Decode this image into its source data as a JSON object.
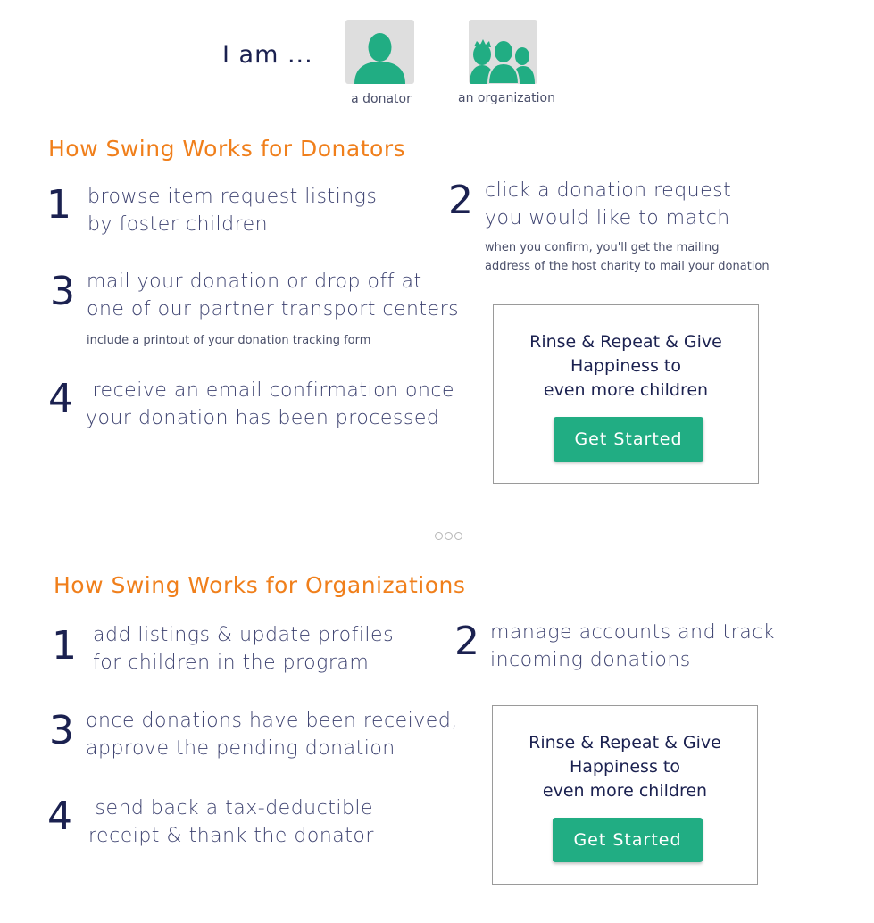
{
  "header": {
    "iam": "I am ...",
    "roles": [
      {
        "label": "a donator",
        "icon": "person-icon",
        "color": "#21ad83"
      },
      {
        "label": "an organization",
        "icon": "group-icon",
        "color": "#21ad83"
      }
    ]
  },
  "donators": {
    "title": "How Swing Works for Donators",
    "steps": [
      {
        "num": "1",
        "lines": [
          "browse item request listings",
          "by foster children"
        ]
      },
      {
        "num": "2",
        "lines": [
          "click a donation request",
          "you would like to match"
        ],
        "note": [
          "when you confirm, you'll get the mailing",
          "address of the host charity to mail your donation"
        ]
      },
      {
        "num": "3",
        "lines": [
          "mail your donation or drop off at",
          "one of our partner transport centers"
        ],
        "note": [
          "include a printout of your donation tracking form"
        ]
      },
      {
        "num": "4",
        "lines": [
          " receive an email confirmation once",
          "your donation has been processed"
        ]
      }
    ],
    "cta": {
      "lines": [
        "Rinse & Repeat & Give",
        "Happiness to",
        "even more children"
      ],
      "button": "Get Started"
    }
  },
  "organizations": {
    "title": "How Swing Works for Organizations",
    "steps": [
      {
        "num": "1",
        "lines": [
          "add listings & update profiles",
          "for children in the program"
        ]
      },
      {
        "num": "2",
        "lines": [
          "manage accounts and track",
          "incoming donations"
        ]
      },
      {
        "num": "3",
        "lines": [
          "once donations have been received,",
          "approve the pending donation"
        ]
      },
      {
        "num": "4",
        "lines": [
          " send back a tax-deductible",
          "receipt & thank the donator"
        ]
      }
    ],
    "cta": {
      "lines": [
        "Rinse & Repeat & Give",
        "Happiness to",
        "even more children"
      ],
      "button": "Get Started"
    }
  },
  "colors": {
    "accent": "#f07f1b",
    "brand": "#21ad83",
    "text": "#1b2150"
  }
}
